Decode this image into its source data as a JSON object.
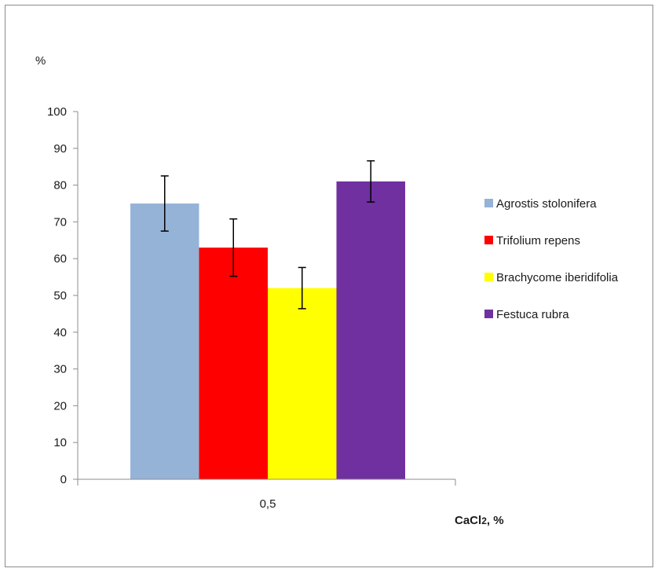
{
  "chart_data": {
    "type": "bar",
    "categories": [
      "0,5"
    ],
    "series": [
      {
        "name": "Agrostis stolonifera",
        "values": [
          75
        ],
        "error": [
          7.5
        ],
        "color": "#95b3d7"
      },
      {
        "name": "Trifolium repens",
        "values": [
          63
        ],
        "error": [
          7.8
        ],
        "color": "#ff0000"
      },
      {
        "name": "Brachycome iberidifolia",
        "values": [
          52
        ],
        "error": [
          5.6
        ],
        "color": "#ffff00"
      },
      {
        "name": "Festuca rubra",
        "values": [
          81
        ],
        "error": [
          5.6
        ],
        "color": "#7030a0"
      }
    ],
    "ylabel": "%",
    "xlabel": {
      "main": "CaCl",
      "subscript": "2",
      "suffix": ", %"
    },
    "ylim": [
      0,
      100
    ],
    "yticks": [
      "0",
      "10",
      "20",
      "30",
      "40",
      "50",
      "60",
      "70",
      "80",
      "90",
      "100"
    ],
    "grid": false,
    "legend": "right"
  }
}
